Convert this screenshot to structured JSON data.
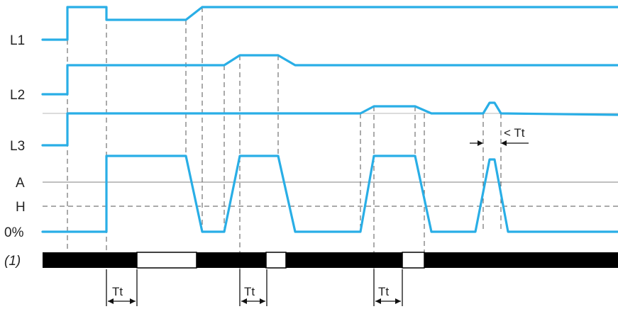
{
  "labels": {
    "l1": "L1",
    "l2": "L2",
    "l3": "L3",
    "a": "A",
    "h": "H",
    "zero": "0%",
    "relay": "(1)"
  },
  "tt": {
    "label": "Tt",
    "less_than_label": "< Tt"
  },
  "colors": {
    "signal": "#29aee6",
    "reference_line": "#9a9a9a",
    "relay_on": "#000000",
    "relay_off": "#ffffff",
    "text": "#222222"
  }
}
